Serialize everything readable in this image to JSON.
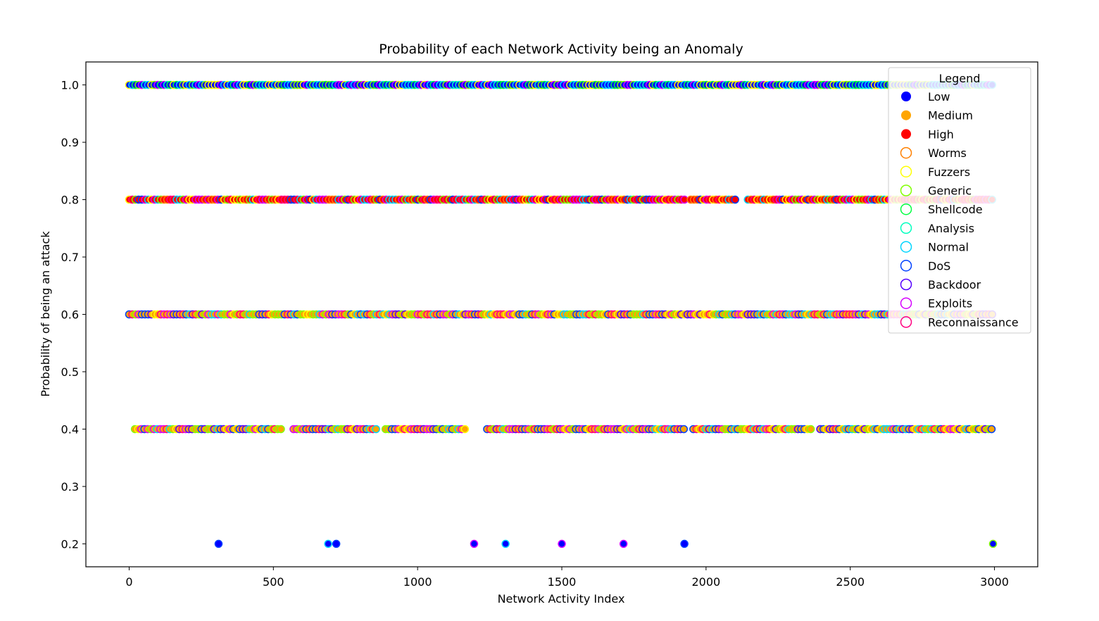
{
  "chart_data": {
    "type": "scatter",
    "title": "Probability of each Network Activity being an Anomaly",
    "xlabel": "Network Activity Index",
    "ylabel": "Probability of being an attack",
    "xlim": [
      -150,
      3150
    ],
    "ylim": [
      0.16,
      1.04
    ],
    "xticks": [
      0,
      500,
      1000,
      1500,
      2000,
      2500,
      3000
    ],
    "yticks": [
      0.2,
      0.3,
      0.4,
      0.5,
      0.6,
      0.7,
      0.8,
      0.9,
      1.0
    ],
    "grid": false,
    "legend": {
      "title": "Legend",
      "placement": "top-right",
      "severity": [
        {
          "name": "Low",
          "color": "#0000ff"
        },
        {
          "name": "Medium",
          "color": "#ffa500"
        },
        {
          "name": "High",
          "color": "#ff0000"
        }
      ],
      "attack_types": [
        {
          "name": "Worms",
          "color": "#ff8000"
        },
        {
          "name": "Fuzzers",
          "color": "#ffff00"
        },
        {
          "name": "Generic",
          "color": "#80ff00"
        },
        {
          "name": "Shellcode",
          "color": "#00ff40"
        },
        {
          "name": "Analysis",
          "color": "#00ffbf"
        },
        {
          "name": "Normal",
          "color": "#00d5ff"
        },
        {
          "name": "DoS",
          "color": "#0040ff"
        },
        {
          "name": "Backdoor",
          "color": "#5500ff"
        },
        {
          "name": "Exploits",
          "color": "#d500ff"
        },
        {
          "name": "Reconnaissance",
          "color": "#ff0080"
        }
      ]
    },
    "series": [
      {
        "probability": 1.0,
        "severity": "Low",
        "x_range": [
          0,
          3000
        ],
        "gaps": [],
        "edge_colors": [
          "Generic",
          "Shellcode",
          "Analysis",
          "Normal",
          "Fuzzers",
          "Exploits"
        ]
      },
      {
        "probability": 0.8,
        "severity": "High",
        "x_range": [
          0,
          3000
        ],
        "gaps": [
          [
            2110,
            2140
          ],
          [
            1935,
            1945
          ]
        ],
        "edge_colors": [
          "Fuzzers",
          "Worms",
          "Exploits",
          "Reconnaissance",
          "Normal",
          "DoS",
          "Generic"
        ]
      },
      {
        "probability": 0.6,
        "severity": "Medium",
        "x_range": [
          0,
          3000
        ],
        "gaps": [],
        "edge_colors": [
          "Exploits",
          "Normal",
          "Backdoor",
          "Fuzzers",
          "Generic",
          "Reconnaissance",
          "DoS"
        ]
      },
      {
        "probability": 0.4,
        "severity": "Medium",
        "x_range": [
          20,
          3000
        ],
        "gaps": [
          [
            530,
            560
          ],
          [
            860,
            880
          ],
          [
            1175,
            1230
          ],
          [
            1930,
            1945
          ],
          [
            2370,
            2390
          ]
        ],
        "edge_colors": [
          "Reconnaissance",
          "Exploits",
          "Backdoor",
          "Generic",
          "Normal",
          "DoS",
          "Fuzzers"
        ]
      },
      {
        "probability": 0.2,
        "severity": "Low",
        "points": [
          {
            "x": 310,
            "edge": "DoS"
          },
          {
            "x": 690,
            "edge": "Normal"
          },
          {
            "x": 718,
            "edge": "DoS"
          },
          {
            "x": 1196,
            "edge": "Exploits"
          },
          {
            "x": 1305,
            "edge": "Normal"
          },
          {
            "x": 1500,
            "edge": "Exploits"
          },
          {
            "x": 1714,
            "edge": "Exploits"
          },
          {
            "x": 1925,
            "edge": "DoS"
          },
          {
            "x": 2995,
            "edge": "Generic"
          }
        ]
      }
    ]
  }
}
